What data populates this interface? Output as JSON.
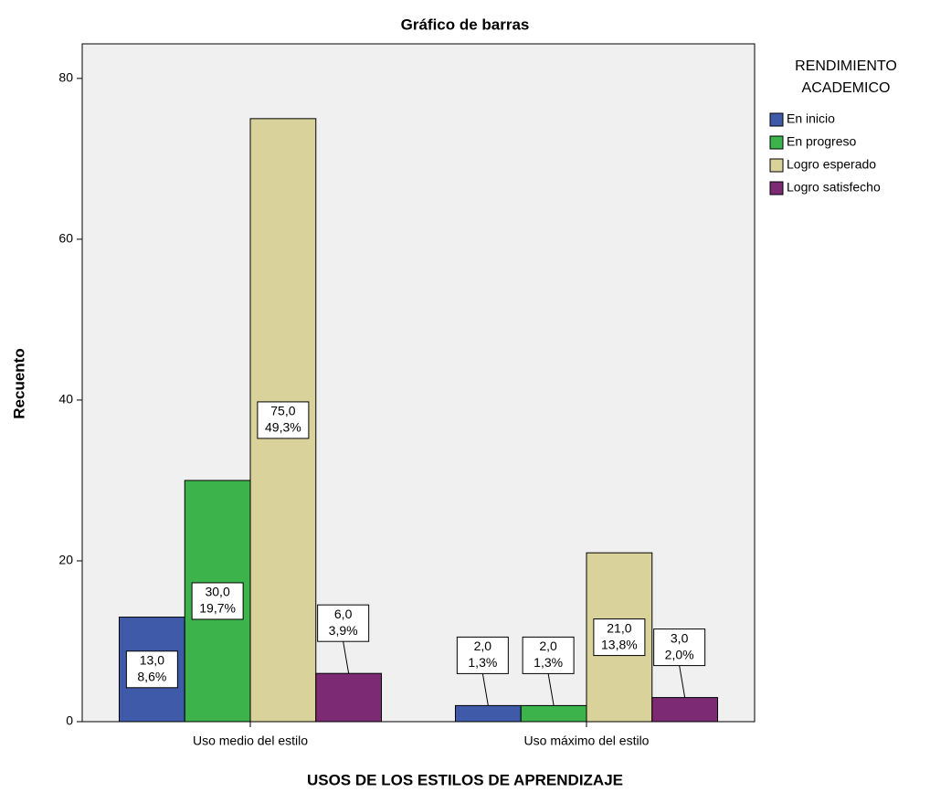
{
  "chart_data": {
    "type": "bar",
    "title": "Gráfico de barras",
    "x_label": "USOS DE LOS ESTILOS DE APRENDIZAJE",
    "y_label": "Recuento",
    "legend_title": [
      "RENDIMIENTO",
      "ACADEMICO"
    ],
    "legend_position": "right",
    "categories": [
      "Uso medio del estilo",
      "Uso máximo del estilo"
    ],
    "series": [
      {
        "name": "En inicio",
        "color": "#3f5aa8",
        "values": [
          13,
          2
        ],
        "value_labels": [
          "13,0",
          "2,0"
        ],
        "percent_labels": [
          "8,6%",
          "1,3%"
        ]
      },
      {
        "name": "En progreso",
        "color": "#3cb44b",
        "values": [
          30,
          2
        ],
        "value_labels": [
          "30,0",
          "2,0"
        ],
        "percent_labels": [
          "19,7%",
          "1,3%"
        ]
      },
      {
        "name": "Logro esperado",
        "color": "#d9d29a",
        "values": [
          75,
          21
        ],
        "value_labels": [
          "75,0",
          "21,0"
        ],
        "percent_labels": [
          "49,3%",
          "13,8%"
        ]
      },
      {
        "name": "Logro satisfecho",
        "color": "#7b2a73",
        "values": [
          6,
          3
        ],
        "value_labels": [
          "6,0",
          "3,0"
        ],
        "percent_labels": [
          "3,9%",
          "2,0%"
        ]
      }
    ],
    "ylim": [
      0,
      84.3
    ],
    "yticks": [
      0,
      20,
      40,
      60,
      80
    ],
    "grid": false
  }
}
